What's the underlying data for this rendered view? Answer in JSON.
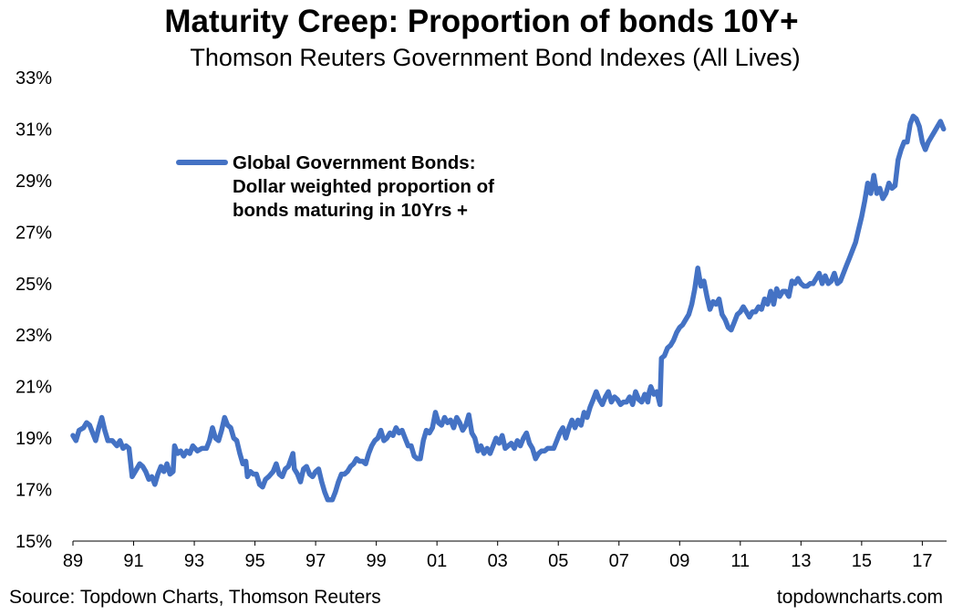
{
  "chart_data": {
    "type": "line",
    "title": "Maturity Creep: Proportion of bonds 10Y+",
    "subtitle": "Thomson Reuters Government Bond Indexes (All Lives)",
    "xlabel": "",
    "ylabel": "",
    "x_tick_labels": [
      "89",
      "91",
      "93",
      "95",
      "97",
      "99",
      "01",
      "03",
      "05",
      "07",
      "09",
      "11",
      "13",
      "15",
      "17"
    ],
    "y_tick_labels": [
      "15%",
      "17%",
      "19%",
      "21%",
      "23%",
      "25%",
      "27%",
      "29%",
      "31%",
      "33%"
    ],
    "ylim": [
      15,
      33
    ],
    "xlim": [
      1989.0,
      2017.8
    ],
    "grid": false,
    "legend_position": "top-left",
    "series": [
      {
        "name": "Global Government Bonds: Dollar weighted proportion of bonds maturing in 10Yrs +",
        "legend_lines": [
          "Global Government Bonds:",
          "Dollar weighted proportion of",
          "bonds maturing in 10Yrs +"
        ],
        "color": "#4472C4",
        "points": [
          [
            1989.0,
            19.1
          ],
          [
            1989.1,
            18.9
          ],
          [
            1989.2,
            19.3
          ],
          [
            1989.35,
            19.4
          ],
          [
            1989.45,
            19.6
          ],
          [
            1989.55,
            19.5
          ],
          [
            1989.65,
            19.2
          ],
          [
            1989.75,
            18.9
          ],
          [
            1989.85,
            19.4
          ],
          [
            1989.95,
            19.8
          ],
          [
            1990.05,
            19.3
          ],
          [
            1990.15,
            18.9
          ],
          [
            1990.3,
            18.9
          ],
          [
            1990.45,
            18.7
          ],
          [
            1990.55,
            18.9
          ],
          [
            1990.65,
            18.6
          ],
          [
            1990.75,
            18.7
          ],
          [
            1990.85,
            18.6
          ],
          [
            1990.95,
            17.5
          ],
          [
            1991.05,
            17.7
          ],
          [
            1991.2,
            18.0
          ],
          [
            1991.3,
            17.9
          ],
          [
            1991.4,
            17.7
          ],
          [
            1991.5,
            17.4
          ],
          [
            1991.6,
            17.5
          ],
          [
            1991.7,
            17.2
          ],
          [
            1991.8,
            17.6
          ],
          [
            1991.9,
            17.9
          ],
          [
            1992.0,
            17.7
          ],
          [
            1992.1,
            18.0
          ],
          [
            1992.2,
            17.6
          ],
          [
            1992.3,
            17.7
          ],
          [
            1992.35,
            18.7
          ],
          [
            1992.45,
            18.4
          ],
          [
            1992.55,
            18.5
          ],
          [
            1992.65,
            18.3
          ],
          [
            1992.75,
            18.5
          ],
          [
            1992.85,
            18.4
          ],
          [
            1992.95,
            18.7
          ],
          [
            1993.1,
            18.5
          ],
          [
            1993.25,
            18.6
          ],
          [
            1993.4,
            18.6
          ],
          [
            1993.5,
            18.9
          ],
          [
            1993.6,
            19.4
          ],
          [
            1993.7,
            19.0
          ],
          [
            1993.8,
            18.9
          ],
          [
            1993.9,
            19.3
          ],
          [
            1994.0,
            19.8
          ],
          [
            1994.1,
            19.5
          ],
          [
            1994.2,
            19.4
          ],
          [
            1994.3,
            19.0
          ],
          [
            1994.4,
            18.9
          ],
          [
            1994.5,
            18.4
          ],
          [
            1994.6,
            18.0
          ],
          [
            1994.7,
            18.1
          ],
          [
            1994.75,
            17.5
          ],
          [
            1994.85,
            17.7
          ],
          [
            1994.95,
            17.6
          ],
          [
            1995.05,
            17.6
          ],
          [
            1995.15,
            17.2
          ],
          [
            1995.25,
            17.1
          ],
          [
            1995.35,
            17.4
          ],
          [
            1995.45,
            17.5
          ],
          [
            1995.6,
            17.7
          ],
          [
            1995.7,
            18.0
          ],
          [
            1995.8,
            17.6
          ],
          [
            1995.9,
            17.5
          ],
          [
            1996.0,
            17.8
          ],
          [
            1996.1,
            17.9
          ],
          [
            1996.25,
            18.4
          ],
          [
            1996.3,
            17.8
          ],
          [
            1996.4,
            17.6
          ],
          [
            1996.5,
            17.3
          ],
          [
            1996.6,
            17.8
          ],
          [
            1996.7,
            17.9
          ],
          [
            1996.8,
            17.6
          ],
          [
            1996.9,
            17.5
          ],
          [
            1997.0,
            17.7
          ],
          [
            1997.1,
            17.8
          ],
          [
            1997.2,
            17.3
          ],
          [
            1997.3,
            16.9
          ],
          [
            1997.4,
            16.6
          ],
          [
            1997.55,
            16.6
          ],
          [
            1997.65,
            16.9
          ],
          [
            1997.75,
            17.3
          ],
          [
            1997.85,
            17.6
          ],
          [
            1997.95,
            17.6
          ],
          [
            1998.05,
            17.7
          ],
          [
            1998.15,
            17.9
          ],
          [
            1998.25,
            18.0
          ],
          [
            1998.35,
            18.2
          ],
          [
            1998.45,
            18.1
          ],
          [
            1998.55,
            18.1
          ],
          [
            1998.65,
            18.0
          ],
          [
            1998.75,
            18.4
          ],
          [
            1998.85,
            18.7
          ],
          [
            1998.95,
            18.9
          ],
          [
            1999.05,
            19.0
          ],
          [
            1999.15,
            19.3
          ],
          [
            1999.25,
            18.9
          ],
          [
            1999.35,
            19.0
          ],
          [
            1999.45,
            19.2
          ],
          [
            1999.55,
            19.1
          ],
          [
            1999.65,
            19.4
          ],
          [
            1999.75,
            19.2
          ],
          [
            1999.85,
            19.3
          ],
          [
            1999.95,
            19.0
          ],
          [
            2000.05,
            18.7
          ],
          [
            2000.15,
            18.7
          ],
          [
            2000.25,
            18.3
          ],
          [
            2000.35,
            18.2
          ],
          [
            2000.45,
            18.2
          ],
          [
            2000.55,
            18.9
          ],
          [
            2000.65,
            19.3
          ],
          [
            2000.75,
            19.2
          ],
          [
            2000.85,
            19.4
          ],
          [
            2000.95,
            20.0
          ],
          [
            2001.05,
            19.6
          ],
          [
            2001.15,
            19.5
          ],
          [
            2001.25,
            19.8
          ],
          [
            2001.35,
            19.6
          ],
          [
            2001.45,
            19.7
          ],
          [
            2001.55,
            19.4
          ],
          [
            2001.65,
            19.8
          ],
          [
            2001.75,
            19.6
          ],
          [
            2001.85,
            19.3
          ],
          [
            2001.95,
            19.5
          ],
          [
            2002.05,
            19.9
          ],
          [
            2002.15,
            19.2
          ],
          [
            2002.25,
            19.0
          ],
          [
            2002.35,
            18.5
          ],
          [
            2002.45,
            18.7
          ],
          [
            2002.55,
            18.4
          ],
          [
            2002.65,
            18.6
          ],
          [
            2002.75,
            18.4
          ],
          [
            2002.85,
            18.7
          ],
          [
            2002.95,
            19.0
          ],
          [
            2003.05,
            18.8
          ],
          [
            2003.15,
            19.1
          ],
          [
            2003.25,
            18.6
          ],
          [
            2003.35,
            18.7
          ],
          [
            2003.45,
            18.8
          ],
          [
            2003.55,
            18.6
          ],
          [
            2003.65,
            18.9
          ],
          [
            2003.75,
            18.7
          ],
          [
            2003.85,
            19.0
          ],
          [
            2003.95,
            19.2
          ],
          [
            2004.05,
            18.8
          ],
          [
            2004.15,
            18.6
          ],
          [
            2004.25,
            18.2
          ],
          [
            2004.35,
            18.4
          ],
          [
            2004.45,
            18.5
          ],
          [
            2004.55,
            18.5
          ],
          [
            2004.65,
            18.6
          ],
          [
            2004.75,
            18.6
          ],
          [
            2004.85,
            18.6
          ],
          [
            2004.95,
            18.9
          ],
          [
            2005.05,
            19.2
          ],
          [
            2005.15,
            19.4
          ],
          [
            2005.25,
            19.0
          ],
          [
            2005.35,
            19.4
          ],
          [
            2005.45,
            19.7
          ],
          [
            2005.55,
            19.4
          ],
          [
            2005.65,
            19.7
          ],
          [
            2005.75,
            19.5
          ],
          [
            2005.85,
            20.0
          ],
          [
            2005.95,
            19.8
          ],
          [
            2006.05,
            20.2
          ],
          [
            2006.15,
            20.5
          ],
          [
            2006.25,
            20.8
          ],
          [
            2006.35,
            20.5
          ],
          [
            2006.45,
            20.3
          ],
          [
            2006.55,
            20.6
          ],
          [
            2006.65,
            20.8
          ],
          [
            2006.75,
            20.4
          ],
          [
            2006.85,
            20.6
          ],
          [
            2006.95,
            20.5
          ],
          [
            2007.05,
            20.3
          ],
          [
            2007.15,
            20.4
          ],
          [
            2007.25,
            20.4
          ],
          [
            2007.35,
            20.6
          ],
          [
            2007.45,
            20.3
          ],
          [
            2007.55,
            20.8
          ],
          [
            2007.65,
            20.5
          ],
          [
            2007.75,
            20.4
          ],
          [
            2007.85,
            20.7
          ],
          [
            2007.95,
            20.4
          ],
          [
            2008.0,
            20.8
          ],
          [
            2008.05,
            21.0
          ],
          [
            2008.15,
            20.7
          ],
          [
            2008.25,
            20.8
          ],
          [
            2008.35,
            20.3
          ],
          [
            2008.4,
            22.1
          ],
          [
            2008.5,
            22.2
          ],
          [
            2008.6,
            22.5
          ],
          [
            2008.7,
            22.6
          ],
          [
            2008.8,
            22.8
          ],
          [
            2008.9,
            23.1
          ],
          [
            2009.0,
            23.3
          ],
          [
            2009.1,
            23.4
          ],
          [
            2009.2,
            23.6
          ],
          [
            2009.3,
            23.8
          ],
          [
            2009.4,
            24.2
          ],
          [
            2009.5,
            24.8
          ],
          [
            2009.6,
            25.6
          ],
          [
            2009.7,
            24.9
          ],
          [
            2009.8,
            25.1
          ],
          [
            2009.9,
            24.5
          ],
          [
            2010.0,
            24.0
          ],
          [
            2010.1,
            24.3
          ],
          [
            2010.2,
            24.2
          ],
          [
            2010.3,
            24.4
          ],
          [
            2010.4,
            23.8
          ],
          [
            2010.5,
            23.6
          ],
          [
            2010.6,
            23.3
          ],
          [
            2010.7,
            23.2
          ],
          [
            2010.8,
            23.5
          ],
          [
            2010.9,
            23.8
          ],
          [
            2011.0,
            23.9
          ],
          [
            2011.1,
            24.1
          ],
          [
            2011.2,
            23.9
          ],
          [
            2011.3,
            23.7
          ],
          [
            2011.4,
            23.9
          ],
          [
            2011.5,
            23.9
          ],
          [
            2011.6,
            24.1
          ],
          [
            2011.7,
            24.0
          ],
          [
            2011.8,
            24.4
          ],
          [
            2011.9,
            24.2
          ],
          [
            2012.0,
            24.7
          ],
          [
            2012.1,
            24.2
          ],
          [
            2012.2,
            24.8
          ],
          [
            2012.3,
            24.5
          ],
          [
            2012.4,
            24.7
          ],
          [
            2012.5,
            24.7
          ],
          [
            2012.6,
            24.5
          ],
          [
            2012.7,
            25.1
          ],
          [
            2012.8,
            25.0
          ],
          [
            2012.9,
            25.2
          ],
          [
            2013.0,
            25.0
          ],
          [
            2013.1,
            24.9
          ],
          [
            2013.2,
            24.9
          ],
          [
            2013.3,
            25.0
          ],
          [
            2013.4,
            25.0
          ],
          [
            2013.5,
            25.2
          ],
          [
            2013.6,
            25.4
          ],
          [
            2013.7,
            25.0
          ],
          [
            2013.8,
            25.3
          ],
          [
            2013.9,
            25.0
          ],
          [
            2014.0,
            25.1
          ],
          [
            2014.1,
            25.4
          ],
          [
            2014.2,
            25.0
          ],
          [
            2014.3,
            25.1
          ],
          [
            2014.4,
            25.4
          ],
          [
            2014.5,
            25.7
          ],
          [
            2014.6,
            26.0
          ],
          [
            2014.7,
            26.3
          ],
          [
            2014.8,
            26.6
          ],
          [
            2014.9,
            27.1
          ],
          [
            2015.0,
            27.6
          ],
          [
            2015.1,
            28.2
          ],
          [
            2015.2,
            28.9
          ],
          [
            2015.3,
            28.5
          ],
          [
            2015.4,
            29.2
          ],
          [
            2015.5,
            28.5
          ],
          [
            2015.6,
            28.7
          ],
          [
            2015.7,
            28.3
          ],
          [
            2015.8,
            28.5
          ],
          [
            2015.9,
            28.9
          ],
          [
            2016.0,
            28.7
          ],
          [
            2016.1,
            28.8
          ],
          [
            2016.2,
            29.8
          ],
          [
            2016.3,
            30.2
          ],
          [
            2016.4,
            30.5
          ],
          [
            2016.5,
            30.5
          ],
          [
            2016.6,
            31.2
          ],
          [
            2016.7,
            31.5
          ],
          [
            2016.8,
            31.4
          ],
          [
            2016.9,
            31.1
          ],
          [
            2017.0,
            30.5
          ],
          [
            2017.1,
            30.2
          ],
          [
            2017.2,
            30.5
          ],
          [
            2017.3,
            30.7
          ],
          [
            2017.4,
            30.9
          ],
          [
            2017.5,
            31.1
          ],
          [
            2017.6,
            31.3
          ],
          [
            2017.7,
            31.0
          ]
        ]
      }
    ],
    "source": "Source: Topdown Charts, Thomson Reuters",
    "watermark": "topdowncharts.com"
  }
}
